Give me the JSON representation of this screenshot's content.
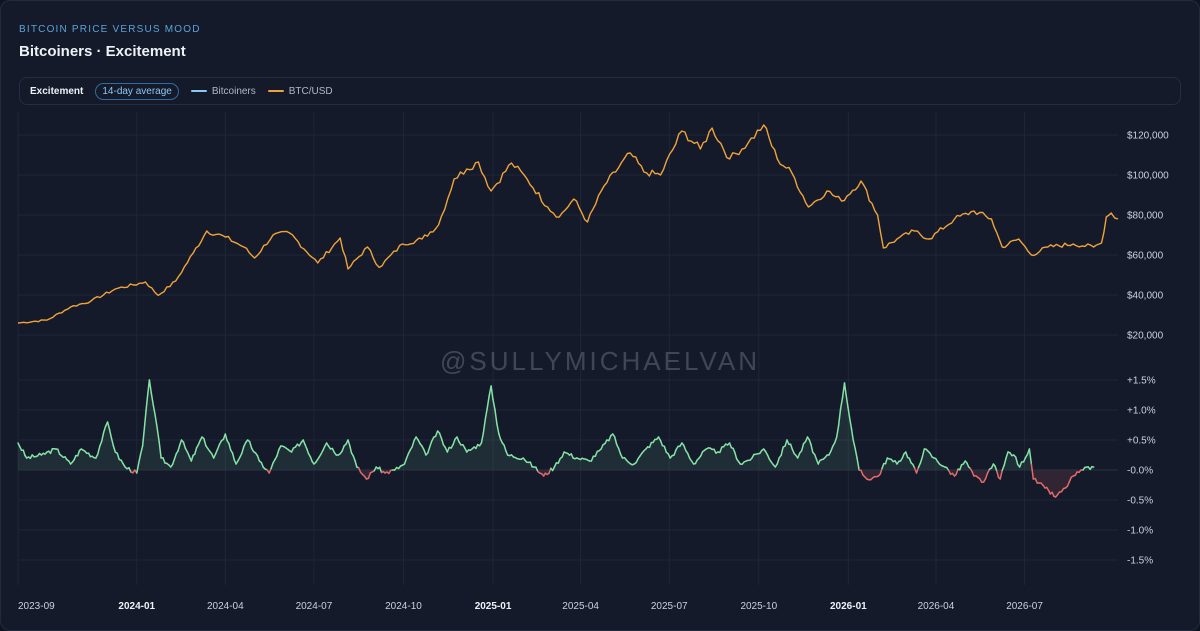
{
  "header": {
    "kicker": "BITCOIN PRICE VERSUS MOOD",
    "title": "Bitcoiners · Excitement"
  },
  "legend": {
    "metric": "Excitement",
    "window": "14-day average",
    "series": [
      {
        "label": "Bitcoiners",
        "color": "#8cc7f2"
      },
      {
        "label": "BTC/USD",
        "color": "#f0a33a"
      }
    ]
  },
  "watermark": "@SULLYMICHAELVAN",
  "colors": {
    "positive": "#86e3a6",
    "negative": "#e06b6b",
    "price": "#f0a33a"
  },
  "chart_data": [
    {
      "type": "line",
      "series": [
        {
          "name": "BTC/USD"
        }
      ],
      "x_range": [
        "2023-09-01",
        "2026-10-05"
      ],
      "ylim": [
        15000,
        125000
      ],
      "yticks": [
        {
          "value": 120000,
          "label": "$120,000"
        },
        {
          "value": 100000,
          "label": "$100,000"
        },
        {
          "value": 80000,
          "label": "$80,000"
        },
        {
          "value": 60000,
          "label": "$60,000"
        },
        {
          "value": 40000,
          "label": "$40,000"
        },
        {
          "value": 20000,
          "label": "$20,000"
        }
      ],
      "points": [
        [
          "2023-09-01",
          26000
        ],
        [
          "2023-10-01",
          27500
        ],
        [
          "2023-10-25",
          34000
        ],
        [
          "2023-11-15",
          37000
        ],
        [
          "2023-12-10",
          43000
        ],
        [
          "2024-01-10",
          46500
        ],
        [
          "2024-01-23",
          39800
        ],
        [
          "2024-02-10",
          47000
        ],
        [
          "2024-02-28",
          61000
        ],
        [
          "2024-03-13",
          72000
        ],
        [
          "2024-04-01",
          69000
        ],
        [
          "2024-04-20",
          64000
        ],
        [
          "2024-05-01",
          58500
        ],
        [
          "2024-05-20",
          70000
        ],
        [
          "2024-06-06",
          71000
        ],
        [
          "2024-07-05",
          56000
        ],
        [
          "2024-07-28",
          68500
        ],
        [
          "2024-08-05",
          53000
        ],
        [
          "2024-08-25",
          64000
        ],
        [
          "2024-09-06",
          53800
        ],
        [
          "2024-09-30",
          65500
        ],
        [
          "2024-10-20",
          68000
        ],
        [
          "2024-11-06",
          75000
        ],
        [
          "2024-11-22",
          98000
        ],
        [
          "2024-12-05",
          103000
        ],
        [
          "2024-12-17",
          106500
        ],
        [
          "2024-12-30",
          92000
        ],
        [
          "2025-01-20",
          106000
        ],
        [
          "2025-02-05",
          98000
        ],
        [
          "2025-02-26",
          84000
        ],
        [
          "2025-03-10",
          79000
        ],
        [
          "2025-03-25",
          88000
        ],
        [
          "2025-04-08",
          76500
        ],
        [
          "2025-04-25",
          94500
        ],
        [
          "2025-05-22",
          111000
        ],
        [
          "2025-06-05",
          101500
        ],
        [
          "2025-06-22",
          100000
        ],
        [
          "2025-07-14",
          122000
        ],
        [
          "2025-08-02",
          113000
        ],
        [
          "2025-08-14",
          123500
        ],
        [
          "2025-09-01",
          108000
        ],
        [
          "2025-09-20",
          116000
        ],
        [
          "2025-10-06",
          125000
        ],
        [
          "2025-10-20",
          108000
        ],
        [
          "2025-11-04",
          101000
        ],
        [
          "2025-11-21",
          84000
        ],
        [
          "2025-12-10",
          92000
        ],
        [
          "2025-12-25",
          87000
        ],
        [
          "2026-01-14",
          97000
        ],
        [
          "2026-01-31",
          80000
        ],
        [
          "2026-02-06",
          63500
        ],
        [
          "2026-02-20",
          68000
        ],
        [
          "2026-03-10",
          72000
        ],
        [
          "2026-03-25",
          68000
        ],
        [
          "2026-04-20",
          78000
        ],
        [
          "2026-05-10",
          82000
        ],
        [
          "2026-05-28",
          78000
        ],
        [
          "2026-06-08",
          64000
        ],
        [
          "2026-06-25",
          68000
        ],
        [
          "2026-07-08",
          60000
        ],
        [
          "2026-07-25",
          64000
        ],
        [
          "2026-08-20",
          65500
        ],
        [
          "2026-09-10",
          64000
        ],
        [
          "2026-09-18",
          66000
        ],
        [
          "2026-09-23",
          79000
        ],
        [
          "2026-09-28",
          81000
        ],
        [
          "2026-10-05",
          78000
        ]
      ]
    },
    {
      "type": "area",
      "series": [
        {
          "name": "Bitcoiners"
        }
      ],
      "x_range": [
        "2023-09-01",
        "2026-10-05"
      ],
      "ylim": [
        -1.7,
        1.7
      ],
      "yticks": [
        {
          "value": 1.5,
          "label": "+1.5%"
        },
        {
          "value": 1.0,
          "label": "+1.0%"
        },
        {
          "value": 0.5,
          "label": "+0.5%"
        },
        {
          "value": 0.0,
          "label": "-0.0%"
        },
        {
          "value": -0.5,
          "label": "-0.5%"
        },
        {
          "value": -1.0,
          "label": "-1.0%"
        },
        {
          "value": -1.5,
          "label": "-1.5%"
        }
      ],
      "points": [
        [
          "2023-09-01",
          0.45
        ],
        [
          "2023-09-10",
          0.2
        ],
        [
          "2023-09-25",
          0.25
        ],
        [
          "2023-10-10",
          0.35
        ],
        [
          "2023-10-25",
          0.1
        ],
        [
          "2023-11-05",
          0.35
        ],
        [
          "2023-11-20",
          0.2
        ],
        [
          "2023-12-02",
          0.8
        ],
        [
          "2023-12-10",
          0.3
        ],
        [
          "2023-12-20",
          0.05
        ],
        [
          "2024-01-01",
          -0.05
        ],
        [
          "2024-01-07",
          0.4
        ],
        [
          "2024-01-14",
          1.5
        ],
        [
          "2024-01-20",
          0.9
        ],
        [
          "2024-01-26",
          0.2
        ],
        [
          "2024-02-05",
          0.05
        ],
        [
          "2024-02-16",
          0.5
        ],
        [
          "2024-02-26",
          0.15
        ],
        [
          "2024-03-08",
          0.55
        ],
        [
          "2024-03-20",
          0.2
        ],
        [
          "2024-04-01",
          0.6
        ],
        [
          "2024-04-12",
          0.1
        ],
        [
          "2024-04-24",
          0.5
        ],
        [
          "2024-05-06",
          0.15
        ],
        [
          "2024-05-16",
          -0.05
        ],
        [
          "2024-05-28",
          0.4
        ],
        [
          "2024-06-08",
          0.3
        ],
        [
          "2024-06-20",
          0.5
        ],
        [
          "2024-07-01",
          0.1
        ],
        [
          "2024-07-14",
          0.45
        ],
        [
          "2024-07-26",
          0.25
        ],
        [
          "2024-08-05",
          0.5
        ],
        [
          "2024-08-14",
          0.05
        ],
        [
          "2024-08-24",
          -0.15
        ],
        [
          "2024-09-03",
          0.05
        ],
        [
          "2024-09-12",
          -0.05
        ],
        [
          "2024-09-22",
          0.0
        ],
        [
          "2024-10-02",
          0.1
        ],
        [
          "2024-10-14",
          0.55
        ],
        [
          "2024-10-24",
          0.25
        ],
        [
          "2024-11-05",
          0.65
        ],
        [
          "2024-11-15",
          0.3
        ],
        [
          "2024-11-25",
          0.55
        ],
        [
          "2024-12-05",
          0.3
        ],
        [
          "2024-12-20",
          0.45
        ],
        [
          "2024-12-30",
          1.4
        ],
        [
          "2025-01-07",
          0.6
        ],
        [
          "2025-01-16",
          0.25
        ],
        [
          "2025-02-01",
          0.2
        ],
        [
          "2025-02-12",
          0.05
        ],
        [
          "2025-02-22",
          -0.1
        ],
        [
          "2025-03-05",
          0.05
        ],
        [
          "2025-03-15",
          0.3
        ],
        [
          "2025-03-28",
          0.2
        ],
        [
          "2025-04-10",
          0.15
        ],
        [
          "2025-04-22",
          0.35
        ],
        [
          "2025-05-04",
          0.6
        ],
        [
          "2025-05-14",
          0.2
        ],
        [
          "2025-05-26",
          0.1
        ],
        [
          "2025-06-07",
          0.35
        ],
        [
          "2025-06-20",
          0.55
        ],
        [
          "2025-07-02",
          0.2
        ],
        [
          "2025-07-14",
          0.45
        ],
        [
          "2025-07-26",
          0.1
        ],
        [
          "2025-08-08",
          0.35
        ],
        [
          "2025-08-20",
          0.3
        ],
        [
          "2025-09-01",
          0.45
        ],
        [
          "2025-09-12",
          0.1
        ],
        [
          "2025-09-24",
          0.2
        ],
        [
          "2025-10-06",
          0.35
        ],
        [
          "2025-10-18",
          0.05
        ],
        [
          "2025-10-30",
          0.5
        ],
        [
          "2025-11-10",
          0.2
        ],
        [
          "2025-11-20",
          0.55
        ],
        [
          "2025-12-01",
          0.1
        ],
        [
          "2025-12-12",
          0.25
        ],
        [
          "2025-12-20",
          0.55
        ],
        [
          "2025-12-28",
          1.45
        ],
        [
          "2026-01-06",
          0.5
        ],
        [
          "2026-01-12",
          0.0
        ],
        [
          "2026-01-20",
          -0.15
        ],
        [
          "2026-02-01",
          -0.1
        ],
        [
          "2026-02-10",
          0.2
        ],
        [
          "2026-02-20",
          0.1
        ],
        [
          "2026-03-01",
          0.3
        ],
        [
          "2026-03-12",
          -0.05
        ],
        [
          "2026-03-20",
          0.35
        ],
        [
          "2026-03-30",
          0.2
        ],
        [
          "2026-04-10",
          0.05
        ],
        [
          "2026-04-20",
          -0.1
        ],
        [
          "2026-05-01",
          0.15
        ],
        [
          "2026-05-10",
          -0.1
        ],
        [
          "2026-05-20",
          -0.2
        ],
        [
          "2026-05-30",
          0.1
        ],
        [
          "2026-06-06",
          -0.15
        ],
        [
          "2026-06-14",
          0.3
        ],
        [
          "2026-06-20",
          0.25
        ],
        [
          "2026-06-26",
          0.05
        ],
        [
          "2026-07-06",
          0.35
        ],
        [
          "2026-07-10",
          -0.15
        ],
        [
          "2026-07-22",
          -0.3
        ],
        [
          "2026-08-02",
          -0.45
        ],
        [
          "2026-08-12",
          -0.3
        ],
        [
          "2026-08-20",
          -0.1
        ],
        [
          "2026-08-30",
          0.0
        ],
        [
          "2026-09-10",
          0.05
        ]
      ]
    }
  ],
  "x_axis": {
    "ticks": [
      {
        "date": "2023-09-01",
        "label": "2023-09",
        "year": false
      },
      {
        "date": "2024-01-01",
        "label": "2024-01",
        "year": true
      },
      {
        "date": "2024-04-01",
        "label": "2024-04",
        "year": false
      },
      {
        "date": "2024-07-01",
        "label": "2024-07",
        "year": false
      },
      {
        "date": "2024-10-01",
        "label": "2024-10",
        "year": false
      },
      {
        "date": "2025-01-01",
        "label": "2025-01",
        "year": true
      },
      {
        "date": "2025-04-01",
        "label": "2025-04",
        "year": false
      },
      {
        "date": "2025-07-01",
        "label": "2025-07",
        "year": false
      },
      {
        "date": "2025-10-01",
        "label": "2025-10",
        "year": false
      },
      {
        "date": "2026-01-01",
        "label": "2026-01",
        "year": true
      },
      {
        "date": "2026-04-01",
        "label": "2026-04",
        "year": false
      },
      {
        "date": "2026-07-01",
        "label": "2026-07",
        "year": false
      }
    ]
  }
}
